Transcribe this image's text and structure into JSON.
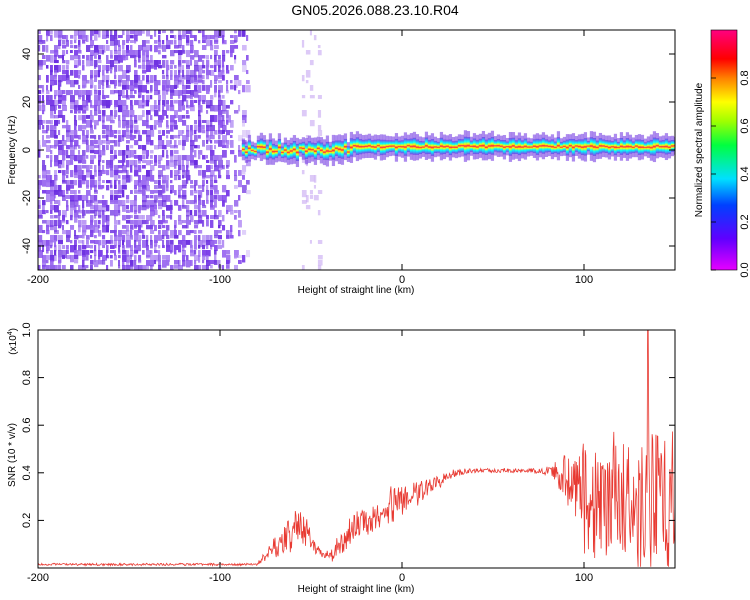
{
  "title": "GN05.2026.088.23.10.R04",
  "colors": {
    "line": "#e83a32",
    "purple": "#7a3ce8",
    "light_purple": "#c7a6f2"
  },
  "chart_data": [
    {
      "type": "heatmap",
      "title": "GN05.2026.088.23.10.R04",
      "xlabel": "Height of straight line (km)",
      "ylabel": "Frequency (Hz)",
      "xlim": [
        -200,
        150
      ],
      "ylim": [
        -50,
        50
      ],
      "xticks": [
        -200,
        -100,
        0,
        100
      ],
      "yticks": [
        -40,
        -20,
        0,
        20,
        40
      ],
      "colorbar": {
        "label": "Normalized spectral amplitude",
        "range": [
          0,
          1
        ],
        "ticks": [
          "0.0",
          "0.2",
          "0.4",
          "0.6",
          "0.8"
        ],
        "colormap": "rainbow (magenta-blue-cyan-green-yellow-red-magenta)"
      },
      "features": [
        {
          "name": "noise band",
          "x_range": [
            -200,
            -85
          ],
          "freq_range": [
            -50,
            50
          ],
          "amplitude": 0.1
        },
        {
          "name": "noise streak",
          "x_range": [
            -55,
            -45
          ],
          "freq_range": [
            -50,
            50
          ],
          "amplitude": 0.05
        },
        {
          "name": "signal ridge",
          "x_range": [
            -88,
            150
          ],
          "center_freq_hz": 1,
          "half_width_hz": 3,
          "peak_amplitude": 1.0
        }
      ]
    },
    {
      "type": "line",
      "xlabel": "Height of straight line (km)",
      "ylabel": "SNR (10 * v/v)",
      "y_scale_note": "(x10^4)",
      "y_scale_base": "(x10",
      "y_scale_exp": "4",
      "xlim": [
        -200,
        150
      ],
      "ylim": [
        0,
        1.0
      ],
      "xticks": [
        -200,
        -100,
        0,
        100
      ],
      "yticks": [
        "0.2",
        "0.4",
        "0.6",
        "0.8",
        "1.0"
      ],
      "series": [
        {
          "name": "SNR",
          "color": "#e83a32",
          "x": [
            -200,
            -180,
            -160,
            -140,
            -120,
            -100,
            -90,
            -80,
            -75,
            -70,
            -65,
            -60,
            -55,
            -50,
            -45,
            -40,
            -35,
            -30,
            -25,
            -20,
            -15,
            -10,
            -5,
            0,
            5,
            10,
            15,
            20,
            25,
            30,
            40,
            50,
            60,
            70,
            80,
            85,
            90,
            95,
            100,
            105,
            110,
            115,
            120,
            125,
            130,
            135,
            140,
            145,
            150
          ],
          "mean": [
            0.015,
            0.015,
            0.015,
            0.015,
            0.015,
            0.015,
            0.015,
            0.015,
            0.05,
            0.08,
            0.12,
            0.15,
            0.17,
            0.12,
            0.06,
            0.05,
            0.1,
            0.15,
            0.18,
            0.2,
            0.22,
            0.25,
            0.27,
            0.29,
            0.3,
            0.32,
            0.34,
            0.36,
            0.39,
            0.4,
            0.41,
            0.41,
            0.41,
            0.41,
            0.41,
            0.4,
            0.38,
            0.33,
            0.3,
            0.3,
            0.3,
            0.29,
            0.29,
            0.28,
            0.3,
            0.32,
            0.3,
            0.28,
            0.28
          ],
          "amplitude": [
            0.005,
            0.005,
            0.005,
            0.005,
            0.005,
            0.005,
            0.005,
            0.005,
            0.03,
            0.05,
            0.07,
            0.09,
            0.08,
            0.05,
            0.02,
            0.03,
            0.06,
            0.07,
            0.07,
            0.08,
            0.08,
            0.08,
            0.08,
            0.07,
            0.06,
            0.05,
            0.04,
            0.03,
            0.02,
            0.015,
            0.01,
            0.01,
            0.01,
            0.01,
            0.02,
            0.05,
            0.12,
            0.2,
            0.25,
            0.27,
            0.28,
            0.28,
            0.3,
            0.3,
            0.32,
            0.33,
            0.33,
            0.32,
            0.3
          ],
          "peak_max": 1.0,
          "peak_x": 135
        }
      ]
    }
  ]
}
